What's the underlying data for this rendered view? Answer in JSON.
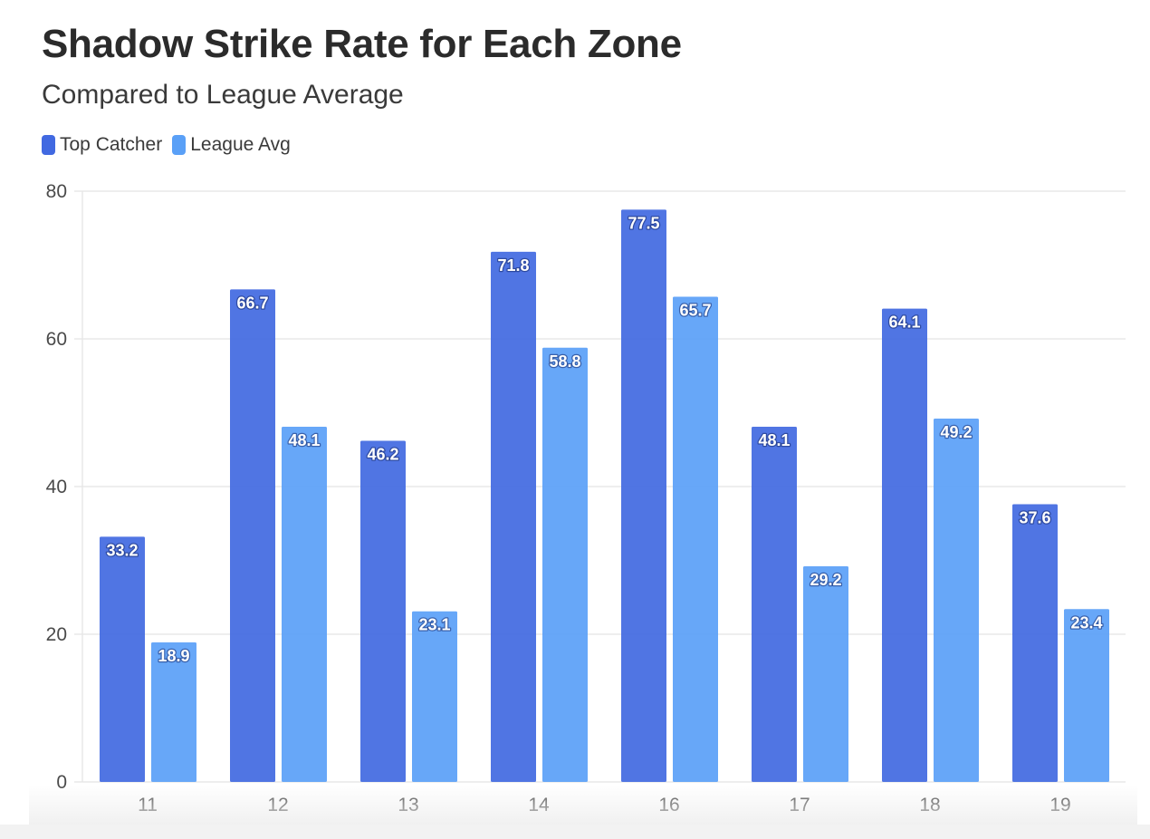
{
  "chart_data": {
    "type": "bar",
    "title": "Shadow Strike Rate for Each Zone",
    "subtitle": "Compared to League Average",
    "xlabel": "",
    "ylabel": "",
    "ylim": [
      0,
      80
    ],
    "yticks": [
      0,
      20,
      40,
      60,
      80
    ],
    "grid": true,
    "legend_position": "top-left",
    "categories": [
      "11",
      "12",
      "13",
      "14",
      "16",
      "17",
      "18",
      "19"
    ],
    "series": [
      {
        "name": "Top Catcher",
        "color": "#4169e1",
        "values": [
          33.2,
          66.7,
          46.2,
          71.8,
          77.5,
          48.1,
          64.1,
          37.6
        ]
      },
      {
        "name": "League Avg",
        "color": "#5aa0f7",
        "values": [
          18.9,
          48.1,
          23.1,
          58.8,
          65.7,
          29.2,
          49.2,
          23.4
        ]
      }
    ]
  }
}
